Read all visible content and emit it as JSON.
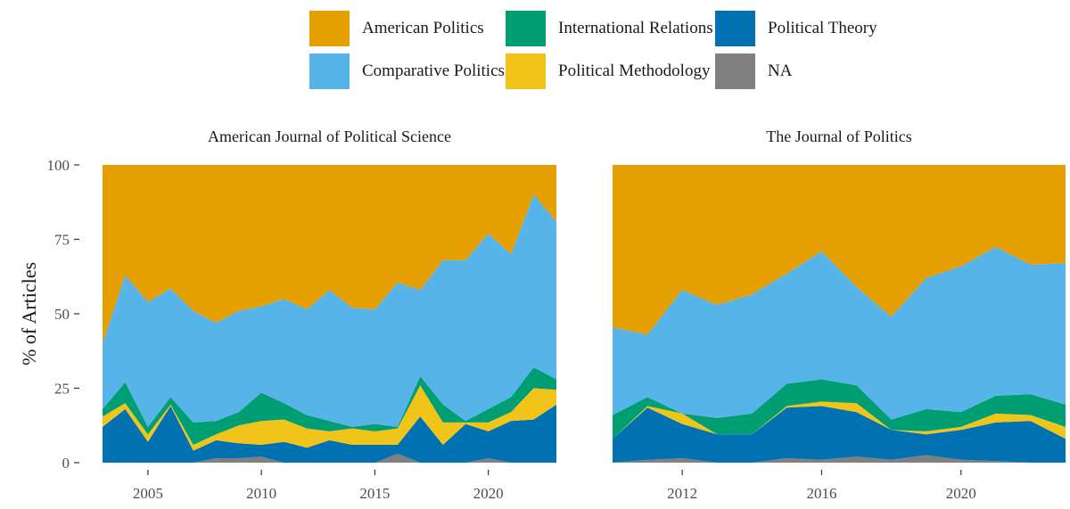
{
  "legend": {
    "items": [
      {
        "key": "am",
        "label": "American Politics",
        "color": "#E69F00"
      },
      {
        "key": "ir",
        "label": "International Relations",
        "color": "#009E73"
      },
      {
        "key": "pt",
        "label": "Political Theory",
        "color": "#0072B2"
      },
      {
        "key": "cp",
        "label": "Comparative Politics",
        "color": "#56B4E9"
      },
      {
        "key": "pm",
        "label": "Political Methodology",
        "color": "#F0C419"
      },
      {
        "key": "na",
        "label": "NA",
        "color": "#808080"
      }
    ]
  },
  "chart_data": {
    "type": "area",
    "stacked": true,
    "ylabel": "% of Articles",
    "ylim": [
      0,
      100
    ],
    "yticks": [
      0,
      25,
      50,
      75,
      100
    ],
    "stack_order_bottom_to_top": [
      "NA",
      "Political Theory",
      "Political Methodology",
      "International Relations",
      "Comparative Politics",
      "American Politics"
    ],
    "panels": [
      {
        "title": "American Journal of Political Science",
        "xlim": [
          2003,
          2023
        ],
        "xticks": [
          2005,
          2010,
          2015,
          2020
        ],
        "x": [
          2003,
          2004,
          2005,
          2006,
          2007,
          2008,
          2009,
          2010,
          2011,
          2012,
          2013,
          2014,
          2015,
          2016,
          2017,
          2018,
          2019,
          2020,
          2021,
          2022,
          2023
        ],
        "series": [
          {
            "name": "NA",
            "values": [
              0,
              0,
              0,
              0,
              0,
              1.5,
              1.5,
              2,
              0,
              0,
              0,
              0,
              0,
              3,
              0,
              0,
              0,
              1.5,
              0,
              0,
              0
            ]
          },
          {
            "name": "Political Theory",
            "values": [
              12,
              18,
              7,
              19,
              4,
              6,
              5,
              4,
              7,
              5,
              7.5,
              6,
              6,
              3,
              15.5,
              6,
              13,
              9,
              14,
              14.5,
              19.5
            ]
          },
          {
            "name": "Political Methodology",
            "values": [
              3.5,
              2,
              2.5,
              0.5,
              2,
              2,
              6,
              8,
              7.5,
              6.5,
              3,
              5.5,
              4.5,
              5.5,
              10.5,
              7.5,
              0.5,
              3,
              3,
              10.5,
              5
            ]
          },
          {
            "name": "International Relations",
            "values": [
              2.5,
              7,
              2.5,
              2.5,
              7.5,
              4.5,
              4.5,
              9.5,
              5.5,
              4.5,
              3.5,
              0.5,
              2.5,
              0.5,
              3,
              6,
              0.5,
              4.5,
              5,
              7,
              3.5
            ]
          },
          {
            "name": "Comparative Politics",
            "values": [
              22,
              36,
              42,
              36.5,
              37.5,
              33,
              34,
              29,
              35,
              35.5,
              44,
              40,
              38.5,
              48.5,
              29,
              48.5,
              54,
              59,
              48,
              58,
              53
            ]
          },
          {
            "name": "American Politics",
            "values": [
              60,
              37,
              46,
              41.5,
              49,
              53,
              49,
              47.5,
              45,
              48.5,
              42,
              48,
              48.5,
              39.5,
              42,
              32,
              32,
              23,
              30,
              10,
              19
            ]
          }
        ]
      },
      {
        "title": "The Journal of Politics",
        "xlim": [
          2010,
          2023
        ],
        "xticks": [
          2012,
          2016,
          2020
        ],
        "x": [
          2010,
          2011,
          2012,
          2013,
          2014,
          2015,
          2016,
          2017,
          2018,
          2019,
          2020,
          2021,
          2022,
          2023
        ],
        "series": [
          {
            "name": "NA",
            "values": [
              0,
              1,
              1.5,
              0,
              0,
              1.5,
              1,
              2,
              1,
              2.5,
              1,
              0.5,
              0,
              0
            ]
          },
          {
            "name": "Political Theory",
            "values": [
              8,
              17.5,
              11.5,
              9.5,
              9.5,
              17,
              18,
              15,
              10,
              7,
              10,
              13,
              14,
              8
            ]
          },
          {
            "name": "Political Methodology",
            "values": [
              0,
              0.5,
              3.5,
              0,
              0,
              0.5,
              1.5,
              3,
              0,
              1,
              1,
              3,
              2,
              4
            ]
          },
          {
            "name": "International Relations",
            "values": [
              8,
              3,
              0,
              5.5,
              7,
              7.5,
              7.5,
              6,
              3.5,
              7.5,
              5,
              6,
              7,
              7.5
            ]
          },
          {
            "name": "Comparative Politics",
            "values": [
              29.5,
              21,
              41.5,
              38,
              40,
              37,
              43,
              33,
              34.5,
              44,
              49,
              50,
              43.5,
              47.5
            ]
          },
          {
            "name": "American Politics",
            "values": [
              54.5,
              57,
              42,
              47,
              43.5,
              36.5,
              29,
              41,
              51,
              38,
              34,
              27.5,
              33.5,
              33
            ]
          }
        ]
      }
    ]
  }
}
